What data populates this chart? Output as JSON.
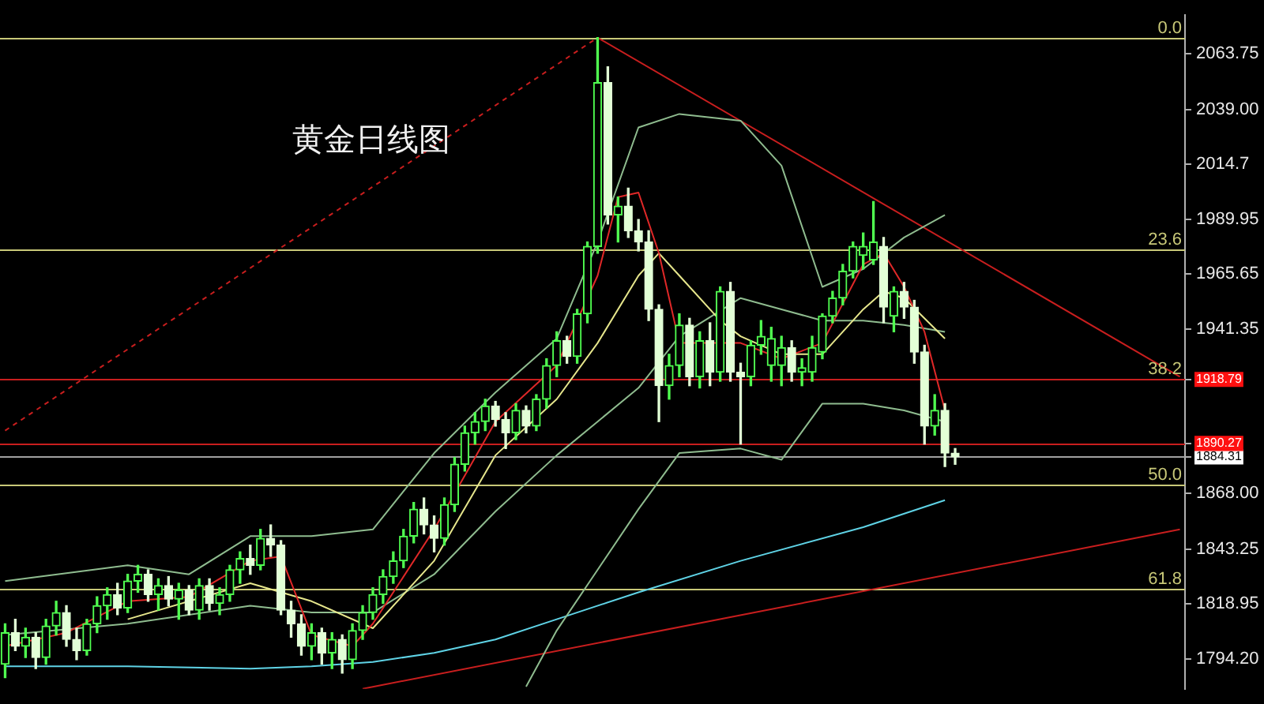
{
  "chart_data": {
    "type": "candlestick",
    "title": "黄金日线图",
    "colors": [
      "#50ff50",
      "#e2ffd6",
      "#50ff50",
      "#e2ffd6",
      "#50ff50",
      "#50ff50",
      "#e2ffd6",
      "#e2ffd6",
      "#50ff50",
      "#50ff50",
      "#50ff50",
      "#e2ffd6",
      "#50ff50",
      "#50ff50",
      "#e2ffd6",
      "#50ff50",
      "#e2ffd6",
      "#50ff50",
      "#e2ffd6",
      "#50ff50",
      "#e2ffd6",
      "#50ff50",
      "#50ff50",
      "#50ff50",
      "#e2ffd6",
      "#50ff50",
      "#e2ffd6",
      "#e2ffd6",
      "#e2ffd6",
      "#e2ffd6",
      "#50ff50",
      "#e2ffd6",
      "#50ff50",
      "#e2ffd6",
      "#50ff50",
      "#50ff50",
      "#50ff50",
      "#50ff50",
      "#50ff50",
      "#50ff50",
      "#50ff50",
      "#e2ffd6",
      "#e2ffd6",
      "#50ff50",
      "#50ff50",
      "#50ff50",
      "#50ff50",
      "#50ff50",
      "#e2ffd6",
      "#e2ffd6",
      "#50ff50",
      "#e2ffd6",
      "#50ff50",
      "#50ff50",
      "#50ff50",
      "#e2ffd6",
      "#50ff50",
      "#50ff50",
      "#50ff50",
      "#e2ffd6",
      "#50ff50",
      "#e2ffd6",
      "#e2ffd6",
      "#e2ffd6",
      "#e2ffd6",
      "#50ff50",
      "#50ff50",
      "#e2ffd6",
      "#50ff50",
      "#e2ffd6",
      "#50ff50",
      "#e2ffd6",
      "#e2ffd6",
      "#50ff50",
      "#50ff50",
      "#50ff50",
      "#50ff50",
      "#e2ffd6",
      "#50ff50",
      "#50ff50",
      "#50ff50",
      "#50ff50",
      "#50ff50",
      "#50ff50",
      "#50ff50",
      "#50ff50",
      "#e2ffd6",
      "#50ff50",
      "#e2ffd6",
      "#e2ffd6",
      "#e2ffd6",
      "#50ff50",
      "#e2ffd6",
      "#e2ffd6",
      null,
      null,
      null,
      null,
      null,
      null,
      null,
      null,
      null,
      null,
      null,
      null,
      null,
      null,
      null,
      null,
      null,
      null,
      null,
      null,
      null,
      null
    ],
    "categories": [
      null,
      null,
      null,
      null,
      null,
      null,
      null,
      null,
      null,
      null,
      null,
      null,
      null,
      null,
      null,
      null,
      null,
      null,
      null,
      null,
      null,
      null,
      null,
      null,
      null,
      null,
      null,
      null,
      null,
      null,
      null,
      null,
      null,
      null,
      null,
      null,
      null,
      null,
      null,
      null,
      null,
      null,
      null,
      null,
      null,
      null,
      null,
      null,
      null,
      null,
      null,
      null,
      null,
      null,
      null,
      null,
      null,
      null,
      null,
      null,
      null,
      null,
      null,
      null,
      null,
      null,
      null,
      null,
      null,
      null,
      null,
      null,
      null,
      null,
      null,
      null,
      null,
      null,
      null,
      null,
      null,
      null,
      null,
      null,
      null,
      null,
      null,
      null,
      null,
      null,
      null,
      null,
      null,
      null,
      null,
      null,
      null,
      null,
      null,
      null,
      null,
      null,
      null,
      null,
      null,
      null,
      null,
      null,
      null,
      null,
      null,
      null,
      null,
      null,
      null,
      null
    ],
    "ohlc": [
      [
        1792,
        1810,
        1786,
        1806
      ],
      [
        1806,
        1812,
        1798,
        1800
      ],
      [
        1800,
        1808,
        1795,
        1804
      ],
      [
        1804,
        1806,
        1790,
        1795
      ],
      [
        1795,
        1812,
        1792,
        1809
      ],
      [
        1809,
        1820,
        1805,
        1815
      ],
      [
        1815,
        1818,
        1800,
        1803
      ],
      [
        1803,
        1808,
        1794,
        1798
      ],
      [
        1798,
        1812,
        1796,
        1810
      ],
      [
        1810,
        1822,
        1806,
        1818
      ],
      [
        1818,
        1826,
        1812,
        1823
      ],
      [
        1823,
        1828,
        1814,
        1817
      ],
      [
        1817,
        1832,
        1815,
        1829
      ],
      [
        1829,
        1836,
        1824,
        1832
      ],
      [
        1832,
        1834,
        1820,
        1823
      ],
      [
        1823,
        1830,
        1816,
        1827
      ],
      [
        1827,
        1831,
        1818,
        1821
      ],
      [
        1821,
        1828,
        1812,
        1825
      ],
      [
        1825,
        1827,
        1814,
        1816
      ],
      [
        1816,
        1830,
        1812,
        1827
      ],
      [
        1827,
        1830,
        1816,
        1819
      ],
      [
        1819,
        1826,
        1814,
        1823
      ],
      [
        1823,
        1836,
        1820,
        1834
      ],
      [
        1834,
        1842,
        1828,
        1839
      ],
      [
        1839,
        1845,
        1832,
        1836
      ],
      [
        1836,
        1852,
        1834,
        1848
      ],
      [
        1848,
        1854,
        1840,
        1845
      ],
      [
        1845,
        1847,
        1814,
        1816
      ],
      [
        1816,
        1820,
        1804,
        1810
      ],
      [
        1810,
        1814,
        1796,
        1800
      ],
      [
        1800,
        1810,
        1794,
        1806
      ],
      [
        1806,
        1808,
        1792,
        1797
      ],
      [
        1797,
        1806,
        1790,
        1803
      ],
      [
        1803,
        1805,
        1788,
        1794
      ],
      [
        1794,
        1810,
        1790,
        1807
      ],
      [
        1807,
        1818,
        1803,
        1815
      ],
      [
        1815,
        1826,
        1812,
        1823
      ],
      [
        1823,
        1834,
        1819,
        1831
      ],
      [
        1831,
        1842,
        1828,
        1838
      ],
      [
        1838,
        1852,
        1835,
        1849
      ],
      [
        1849,
        1864,
        1846,
        1861
      ],
      [
        1861,
        1866,
        1850,
        1854
      ],
      [
        1854,
        1858,
        1842,
        1848
      ],
      [
        1848,
        1866,
        1845,
        1863
      ],
      [
        1863,
        1884,
        1860,
        1881
      ],
      [
        1881,
        1898,
        1878,
        1895
      ],
      [
        1895,
        1904,
        1890,
        1900
      ],
      [
        1900,
        1910,
        1896,
        1907
      ],
      [
        1907,
        1909,
        1898,
        1901
      ],
      [
        1901,
        1904,
        1888,
        1895
      ],
      [
        1895,
        1908,
        1892,
        1905
      ],
      [
        1905,
        1907,
        1895,
        1898
      ],
      [
        1898,
        1912,
        1896,
        1910
      ],
      [
        1910,
        1928,
        1906,
        1925
      ],
      [
        1925,
        1940,
        1920,
        1936
      ],
      [
        1936,
        1938,
        1926,
        1929
      ],
      [
        1929,
        1950,
        1926,
        1948
      ],
      [
        1948,
        1980,
        1944,
        1978
      ],
      [
        1978,
        2071,
        1975,
        2051
      ],
      [
        2051,
        2058,
        1988,
        1992
      ],
      [
        1992,
        2000,
        1980,
        1996
      ],
      [
        1996,
        2004,
        1982,
        1985
      ],
      [
        1985,
        1990,
        1976,
        1980
      ],
      [
        1980,
        1985,
        1945,
        1950
      ],
      [
        1950,
        1952,
        1900,
        1916
      ],
      [
        1916,
        1930,
        1910,
        1925
      ],
      [
        1925,
        1948,
        1920,
        1943
      ],
      [
        1943,
        1946,
        1916,
        1920
      ],
      [
        1920,
        1940,
        1915,
        1936
      ],
      [
        1936,
        1944,
        1916,
        1922
      ],
      [
        1922,
        1960,
        1918,
        1958
      ],
      [
        1958,
        1962,
        1918,
        1922
      ],
      [
        1922,
        1926,
        1890,
        1920
      ],
      [
        1920,
        1936,
        1916,
        1934
      ],
      [
        1934,
        1945,
        1930,
        1938
      ],
      [
        1925,
        1942,
        1918,
        1937
      ],
      [
        1925,
        1938,
        1916,
        1933
      ],
      [
        1933,
        1936,
        1918,
        1922
      ],
      [
        1922,
        1928,
        1916,
        1924
      ],
      [
        1922,
        1938,
        1918,
        1933
      ],
      [
        1931,
        1948,
        1928,
        1947
      ],
      [
        1947,
        1958,
        1944,
        1955
      ],
      [
        1955,
        1970,
        1952,
        1967
      ],
      [
        1967,
        1980,
        1964,
        1978
      ],
      [
        1974,
        1984,
        1968,
        1978
      ],
      [
        1972,
        1998,
        1970,
        1980
      ],
      [
        1978,
        1982,
        1944,
        1951
      ],
      [
        1947,
        1960,
        1940,
        1958
      ],
      [
        1958,
        1962,
        1946,
        1951
      ],
      [
        1951,
        1954,
        1926,
        1931
      ],
      [
        1931,
        1934,
        1890,
        1898
      ],
      [
        1898,
        1912,
        1894,
        1905
      ],
      [
        1905,
        1908,
        1880,
        1886
      ],
      [
        1886,
        1888,
        1881,
        1884.31
      ],
      null,
      null,
      null,
      null,
      null,
      null,
      null,
      null,
      null,
      null,
      null,
      null,
      null,
      null,
      null,
      null,
      null,
      null,
      null,
      null,
      null,
      null
    ],
    "series": [
      {
        "type": "line",
        "color": "#e02828",
        "values": [
          1800,
          null,
          null,
          null,
          null,
          null,
          1806,
          null,
          null,
          null,
          null,
          null,
          1820,
          null,
          null,
          null,
          null,
          null,
          1822,
          null,
          null,
          null,
          null,
          null,
          1838,
          null,
          null,
          1840,
          null,
          null,
          1805,
          null,
          null,
          null,
          1800,
          null,
          1810,
          null,
          null,
          null,
          null,
          null,
          1852,
          null,
          null,
          null,
          null,
          null,
          1900,
          null,
          null,
          null,
          null,
          null,
          1925,
          null,
          null,
          null,
          1965,
          null,
          2000,
          null,
          2002,
          null,
          1975,
          null,
          1935,
          null,
          null,
          null,
          null,
          null,
          1935,
          null,
          null,
          null,
          1928,
          null,
          null,
          null,
          1935,
          null,
          null,
          null,
          1970,
          null,
          1975,
          null,
          1960,
          null,
          1940,
          null,
          1905,
          null,
          null,
          null,
          null,
          null,
          null,
          null,
          null,
          null,
          null,
          null,
          null,
          null,
          null,
          null,
          null,
          null,
          null,
          null,
          null,
          null,
          null,
          null
        ]
      },
      {
        "type": "line",
        "color": "#e6e68c",
        "values": [
          null,
          null,
          null,
          null,
          null,
          null,
          null,
          null,
          null,
          null,
          null,
          null,
          1812,
          null,
          null,
          null,
          null,
          null,
          1820,
          null,
          null,
          null,
          null,
          null,
          1828,
          null,
          null,
          null,
          null,
          null,
          1820,
          null,
          null,
          null,
          null,
          null,
          1808,
          null,
          null,
          null,
          null,
          null,
          1838,
          null,
          null,
          null,
          null,
          null,
          1885,
          null,
          null,
          null,
          null,
          null,
          1910,
          null,
          null,
          null,
          1935,
          null,
          null,
          null,
          1965,
          null,
          1975,
          null,
          1965,
          null,
          null,
          null,
          1945,
          null,
          1938,
          null,
          null,
          null,
          1930,
          null,
          null,
          null,
          1930,
          null,
          null,
          null,
          1950,
          null,
          1958,
          null,
          1955,
          null,
          null,
          null,
          1937,
          null,
          null,
          null,
          null,
          null,
          null,
          null,
          null,
          null,
          null,
          null,
          null,
          null,
          null,
          null,
          null,
          null,
          null,
          null,
          null,
          null,
          null,
          null
        ]
      },
      {
        "type": "line",
        "color": "#8fbc8f",
        "values": [
          1829,
          null,
          null,
          null,
          null,
          null,
          null,
          null,
          null,
          null,
          null,
          null,
          1836,
          null,
          null,
          null,
          null,
          null,
          1832,
          null,
          null,
          null,
          null,
          null,
          1849,
          null,
          null,
          null,
          null,
          null,
          1849,
          null,
          null,
          null,
          null,
          null,
          1852,
          null,
          null,
          null,
          null,
          null,
          1886,
          null,
          null,
          null,
          null,
          null,
          1913,
          null,
          null,
          null,
          null,
          null,
          1937,
          null,
          null,
          null,
          1980,
          null,
          null,
          null,
          2031,
          null,
          null,
          null,
          2037,
          null,
          null,
          null,
          null,
          null,
          2034,
          null,
          null,
          null,
          2014,
          null,
          null,
          null,
          1960,
          null,
          null,
          null,
          1968,
          null,
          null,
          null,
          1982,
          null,
          null,
          null,
          1992,
          null,
          null,
          null,
          null,
          null,
          null,
          null,
          null,
          null,
          null,
          null,
          null,
          null,
          null,
          null,
          null,
          null,
          null,
          null,
          null,
          null,
          null,
          null
        ]
      },
      {
        "type": "line",
        "color": "#8fbc8f",
        "values": [
          1805,
          null,
          null,
          null,
          null,
          null,
          null,
          null,
          null,
          null,
          null,
          null,
          1810,
          null,
          null,
          null,
          null,
          null,
          null,
          null,
          null,
          null,
          null,
          null,
          1818,
          null,
          null,
          null,
          null,
          null,
          1815,
          null,
          null,
          null,
          null,
          null,
          1815,
          null,
          null,
          null,
          null,
          null,
          1832,
          null,
          null,
          null,
          null,
          null,
          1860,
          null,
          null,
          null,
          null,
          null,
          1885,
          null,
          null,
          null,
          1900,
          null,
          null,
          null,
          1915,
          null,
          null,
          null,
          1938,
          null,
          null,
          null,
          null,
          null,
          1955,
          null,
          null,
          null,
          1950,
          null,
          null,
          null,
          1945,
          null,
          null,
          null,
          1945,
          null,
          null,
          null,
          1943,
          null,
          null,
          null,
          1940,
          null,
          null,
          null,
          null,
          null,
          null,
          null,
          null,
          null,
          null,
          null,
          null,
          null,
          null,
          null,
          null,
          null,
          null,
          null,
          null,
          null,
          null,
          null
        ]
      },
      {
        "type": "line",
        "color": "#8fbc8f",
        "values": [
          null,
          null,
          null,
          null,
          null,
          null,
          null,
          null,
          null,
          null,
          null,
          null,
          null,
          null,
          null,
          null,
          null,
          null,
          null,
          null,
          null,
          null,
          null,
          null,
          null,
          null,
          null,
          null,
          null,
          null,
          null,
          null,
          null,
          null,
          null,
          null,
          null,
          null,
          null,
          null,
          null,
          null,
          null,
          null,
          null,
          null,
          null,
          null,
          null,
          null,
          null,
          1782,
          null,
          null,
          1807,
          null,
          null,
          null,
          1834,
          null,
          null,
          null,
          1861,
          null,
          null,
          null,
          1886,
          null,
          null,
          null,
          null,
          null,
          1888,
          null,
          null,
          null,
          1883,
          null,
          null,
          null,
          1908,
          null,
          null,
          null,
          1908,
          null,
          null,
          null,
          1905,
          null,
          null,
          null,
          1900,
          null,
          null,
          null,
          null,
          null,
          null,
          null,
          null,
          null,
          null,
          null,
          null,
          null,
          null,
          null,
          null,
          null,
          null,
          null,
          null,
          null,
          null,
          null
        ]
      },
      {
        "type": "line",
        "color": "#5fd3e6",
        "values": [
          1791,
          null,
          null,
          null,
          null,
          null,
          null,
          null,
          null,
          null,
          null,
          null,
          1791,
          null,
          null,
          null,
          null,
          null,
          null,
          null,
          null,
          null,
          null,
          null,
          1790,
          null,
          null,
          null,
          null,
          null,
          1791,
          null,
          null,
          null,
          null,
          null,
          1793,
          null,
          null,
          null,
          null,
          null,
          1797,
          null,
          null,
          null,
          null,
          null,
          1803,
          null,
          null,
          null,
          null,
          null,
          1812,
          null,
          null,
          null,
          null,
          null,
          null,
          null,
          1824,
          null,
          null,
          null,
          null,
          null,
          null,
          null,
          null,
          null,
          1838,
          null,
          null,
          null,
          null,
          null,
          null,
          null,
          null,
          null,
          null,
          null,
          1853,
          null,
          null,
          null,
          null,
          null,
          null,
          null,
          1865,
          null,
          null,
          null,
          null,
          null,
          null,
          null,
          null,
          null,
          null,
          null,
          null,
          null,
          null,
          null,
          null,
          null,
          null,
          null,
          null,
          null,
          null,
          null
        ]
      },
      {
        "type": "line",
        "color": "#c81e1e",
        "line_style": "dashed",
        "values": [
          1896,
          null,
          null,
          null,
          null,
          null,
          null,
          null,
          null,
          null,
          null,
          null,
          null,
          null,
          null,
          null,
          null,
          null,
          null,
          null,
          null,
          null,
          null,
          null,
          null,
          null,
          null,
          null,
          null,
          null,
          null,
          null,
          null,
          null,
          null,
          null,
          null,
          null,
          null,
          null,
          null,
          null,
          null,
          null,
          null,
          null,
          null,
          null,
          null,
          null,
          null,
          null,
          null,
          null,
          null,
          null,
          null,
          null,
          2071,
          null,
          null,
          null,
          null,
          null,
          null,
          null,
          null,
          null,
          null,
          null,
          null,
          null,
          null,
          null,
          null,
          null,
          null,
          null,
          null,
          null,
          null,
          null,
          null,
          null,
          null,
          null,
          null,
          null,
          null,
          null,
          null,
          null,
          null,
          null,
          null,
          null,
          null,
          null,
          null,
          null,
          null,
          null,
          null,
          null,
          null,
          null,
          null,
          null,
          null,
          null,
          null,
          null,
          null,
          null,
          null,
          null
        ]
      },
      {
        "type": "line",
        "color": "#c81e1e",
        "values": [
          null,
          null,
          null,
          null,
          null,
          null,
          null,
          null,
          null,
          null,
          null,
          null,
          null,
          null,
          null,
          null,
          null,
          null,
          null,
          null,
          null,
          null,
          null,
          null,
          null,
          null,
          null,
          null,
          null,
          null,
          null,
          null,
          null,
          null,
          null,
          null,
          null,
          null,
          null,
          null,
          null,
          null,
          null,
          null,
          null,
          null,
          null,
          null,
          null,
          null,
          null,
          null,
          null,
          null,
          null,
          null,
          null,
          null,
          2071,
          null,
          null,
          null,
          null,
          null,
          null,
          null,
          null,
          null,
          null,
          null,
          null,
          null,
          null,
          null,
          null,
          null,
          null,
          null,
          null,
          null,
          null,
          null,
          null,
          null,
          null,
          null,
          null,
          null,
          null,
          null,
          null,
          null,
          null,
          null,
          null,
          null,
          null,
          null,
          null,
          null,
          null,
          null,
          null,
          null,
          null,
          null,
          null,
          null,
          null,
          null,
          null,
          null,
          null,
          null,
          null,
          1920
        ]
      },
      {
        "type": "line",
        "color": "#c81e1e",
        "values": [
          null,
          null,
          null,
          null,
          null,
          null,
          null,
          null,
          null,
          null,
          null,
          null,
          null,
          null,
          null,
          null,
          null,
          null,
          null,
          null,
          null,
          null,
          null,
          null,
          null,
          null,
          null,
          null,
          null,
          null,
          null,
          null,
          null,
          null,
          null,
          1781,
          null,
          null,
          null,
          null,
          null,
          null,
          null,
          null,
          null,
          null,
          null,
          null,
          null,
          null,
          null,
          null,
          null,
          null,
          null,
          null,
          null,
          null,
          null,
          null,
          null,
          null,
          null,
          null,
          null,
          null,
          null,
          null,
          null,
          null,
          null,
          null,
          null,
          null,
          null,
          null,
          null,
          null,
          null,
          null,
          null,
          null,
          null,
          null,
          null,
          null,
          null,
          null,
          null,
          null,
          null,
          null,
          null,
          null,
          null,
          null,
          null,
          null,
          null,
          null,
          null,
          null,
          null,
          null,
          null,
          null,
          null,
          null,
          null,
          null,
          null,
          null,
          null,
          null,
          null,
          1852
        ]
      }
    ],
    "ylim": [
      1781,
      2081
    ],
    "yticks": [
      2063.75,
      {
        "value": 2039,
        "label": "2039.00"
      },
      2014.7,
      1989.95,
      1965.65,
      1941.35,
      1918.79,
      1884.31,
      1890.27,
      {
        "value": 1868,
        "label": "1868.00"
      },
      1843.25,
      1818.95,
      {
        "value": 1794.2,
        "label": "1794.20"
      }
    ],
    "tick_labels": "y",
    "ref_lines": [
      {
        "axis": "y",
        "value": 2071.2,
        "color": "#c8c878"
      },
      {
        "axis": "y",
        "value": 1977,
        "color": "#c8c878"
      },
      {
        "axis": "y",
        "value": 1918.79,
        "color": "#c81e1e"
      },
      {
        "axis": "y",
        "value": 1871.7,
        "color": "#c8c878"
      },
      {
        "axis": "y",
        "value": 1825.6,
        "color": "#c8c878"
      },
      {
        "axis": "y",
        "value": 1890.27,
        "color": "#c81e1e"
      },
      {
        "axis": "y",
        "value": 1884.31,
        "color": "#a0a0a0"
      }
    ],
    "annotations": [
      "0.0",
      "23.6",
      "38.2",
      "50.0",
      "61.8"
    ]
  }
}
